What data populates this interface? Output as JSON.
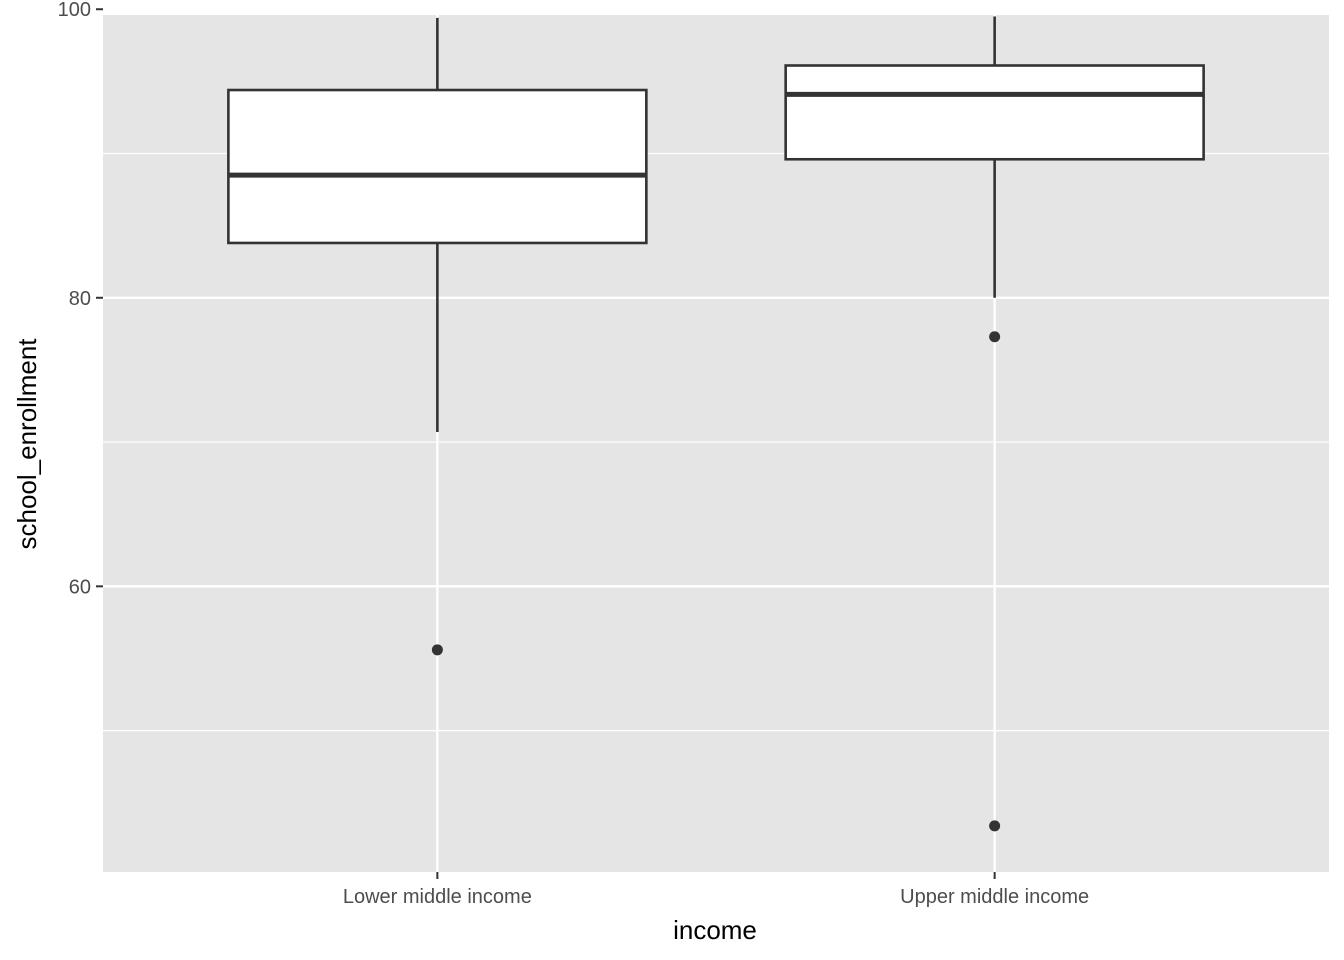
{
  "chart_data": {
    "type": "boxplot",
    "xlabel": "income",
    "ylabel": "school_enrollment",
    "ylim": [
      40.2,
      99.6
    ],
    "y_ticks": [
      60,
      80,
      100
    ],
    "y_minor_ticks": [
      50,
      70,
      90
    ],
    "categories": [
      "Lower middle income",
      "Upper middle income"
    ],
    "boxes": [
      {
        "category": "Lower middle income",
        "whisker_low": 70.7,
        "q1": 83.8,
        "median": 88.5,
        "q3": 94.4,
        "whisker_high": 99.4,
        "outliers": [
          55.6
        ]
      },
      {
        "category": "Upper middle income",
        "whisker_low": 80.0,
        "q1": 89.6,
        "median": 94.1,
        "q3": 96.1,
        "whisker_high": 99.5,
        "outliers": [
          77.3,
          43.4
        ]
      }
    ],
    "grid": true,
    "panel_background": "#e5e5e5",
    "grid_color": "#ffffff",
    "box_fill": "#ffffff",
    "line_color": "#333333"
  }
}
